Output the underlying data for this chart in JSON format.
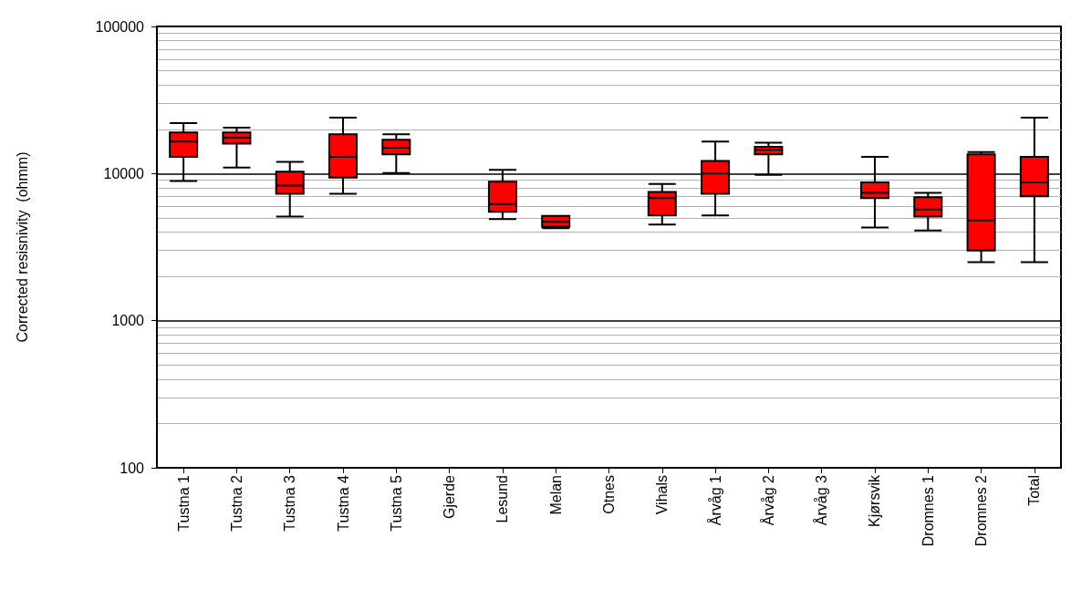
{
  "chart_data": {
    "type": "box",
    "ylabel": "Corrected resisnivity  (ohmm)",
    "categories": [
      "Tustna 1",
      "Tustna 2",
      "Tustna 3",
      "Tustna 4",
      "Tustna 5",
      "Gjerde",
      "Lesund",
      "Melan",
      "Otnes",
      "Vihals",
      "Årvåg 1",
      "Årvåg 2",
      "Årvåg 3",
      "Kjørsvik",
      "Dromnes 1",
      "Dromnes 2",
      "Total"
    ],
    "boxes": [
      {
        "low": 8900,
        "q1": 13000,
        "median": 16500,
        "q3": 19000,
        "high": 22000
      },
      {
        "low": 11000,
        "q1": 16000,
        "median": 17500,
        "q3": 19000,
        "high": 20500
      },
      {
        "low": 5100,
        "q1": 7300,
        "median": 8300,
        "q3": 10300,
        "high": 12000
      },
      {
        "low": 7300,
        "q1": 9400,
        "median": 13000,
        "q3": 18500,
        "high": 24000
      },
      {
        "low": 10100,
        "q1": 13500,
        "median": 15000,
        "q3": 17000,
        "high": 18500
      },
      null,
      {
        "low": 4900,
        "q1": 5500,
        "median": 6200,
        "q3": 8800,
        "high": 10600
      },
      {
        "low": 4250,
        "q1": 4350,
        "median": 4700,
        "q3": 5150,
        "high": 5150
      },
      null,
      {
        "low": 4500,
        "q1": 5200,
        "median": 6800,
        "q3": 7500,
        "high": 8500
      },
      {
        "low": 5200,
        "q1": 7300,
        "median": 10000,
        "q3": 12200,
        "high": 16500
      },
      {
        "low": 9800,
        "q1": 13500,
        "median": 14500,
        "q3": 15200,
        "high": 16200
      },
      null,
      {
        "low": 4300,
        "q1": 6800,
        "median": 7400,
        "q3": 8700,
        "high": 13000
      },
      {
        "low": 4100,
        "q1": 5100,
        "median": 5700,
        "q3": 6900,
        "high": 7400
      },
      {
        "low": 2500,
        "q1": 3000,
        "median": 4800,
        "q3": 13500,
        "high": 14000
      },
      {
        "low": 2500,
        "q1": 7000,
        "median": 8700,
        "q3": 13000,
        "high": 24000
      }
    ],
    "color": "#ff0000",
    "log": true,
    "ylim": [
      100,
      100000
    ],
    "yticks": [
      100,
      1000,
      10000,
      100000
    ],
    "grid": "y"
  }
}
